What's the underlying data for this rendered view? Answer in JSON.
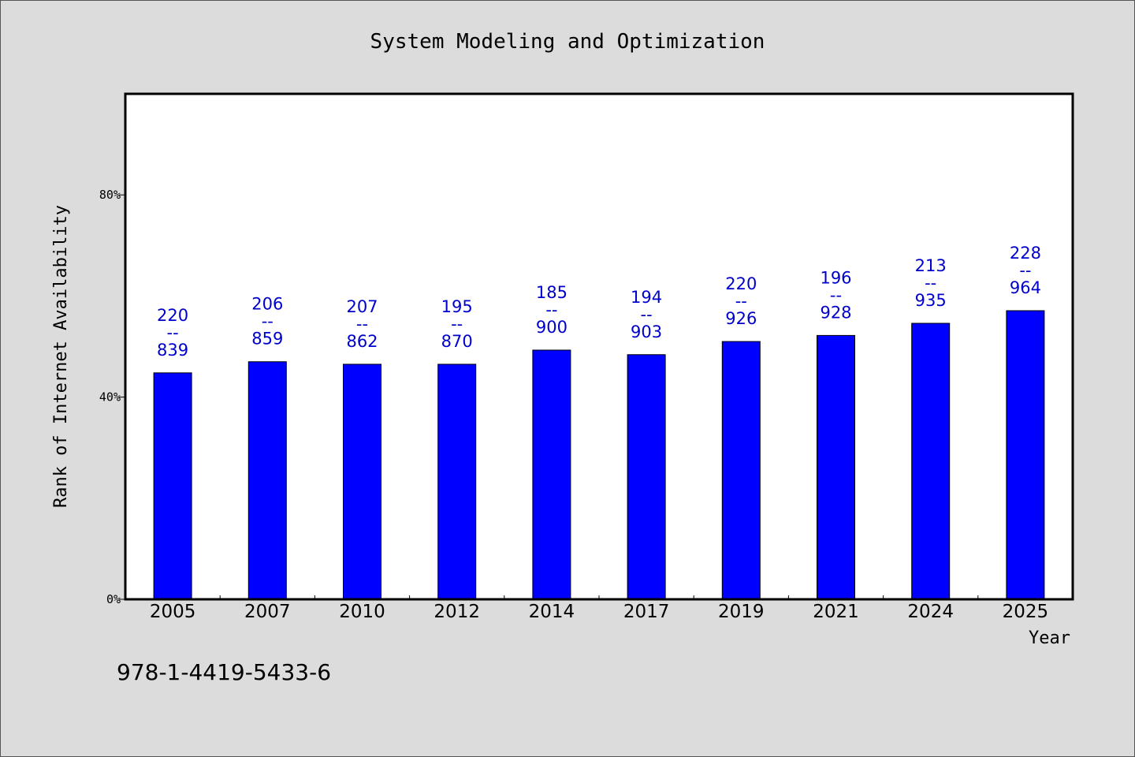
{
  "chart_data": {
    "type": "bar",
    "title": "System Modeling and Optimization",
    "xlabel": "Year",
    "ylabel": "Rank of Internet Availability",
    "categories": [
      "2005",
      "2007",
      "2010",
      "2012",
      "2014",
      "2017",
      "2019",
      "2021",
      "2024",
      "2025"
    ],
    "values": [
      44.8,
      47.0,
      46.5,
      46.5,
      49.3,
      48.4,
      51.0,
      52.2,
      54.6,
      57.1
    ],
    "value_unit": "%",
    "data_labels": [
      {
        "top": "220",
        "sep": "--",
        "bottom": "839"
      },
      {
        "top": "206",
        "sep": "--",
        "bottom": "859"
      },
      {
        "top": "207",
        "sep": "--",
        "bottom": "862"
      },
      {
        "top": "195",
        "sep": "--",
        "bottom": "870"
      },
      {
        "top": "185",
        "sep": "--",
        "bottom": "900"
      },
      {
        "top": "194",
        "sep": "--",
        "bottom": "903"
      },
      {
        "top": "220",
        "sep": "--",
        "bottom": "926"
      },
      {
        "top": "196",
        "sep": "--",
        "bottom": "928"
      },
      {
        "top": "213",
        "sep": "--",
        "bottom": "935"
      },
      {
        "top": "228",
        "sep": "--",
        "bottom": "964"
      }
    ],
    "yticks": [
      "0%",
      "40%",
      "80%"
    ],
    "ytick_values": [
      0,
      40,
      80
    ],
    "ylim": [
      0,
      100
    ],
    "grid": false,
    "bar_color": "#0000ff",
    "label_color": "#0000cc",
    "background": "#dcdcdc",
    "plot_background": "#ffffff"
  },
  "footnote": "978-1-4419-5433-6"
}
